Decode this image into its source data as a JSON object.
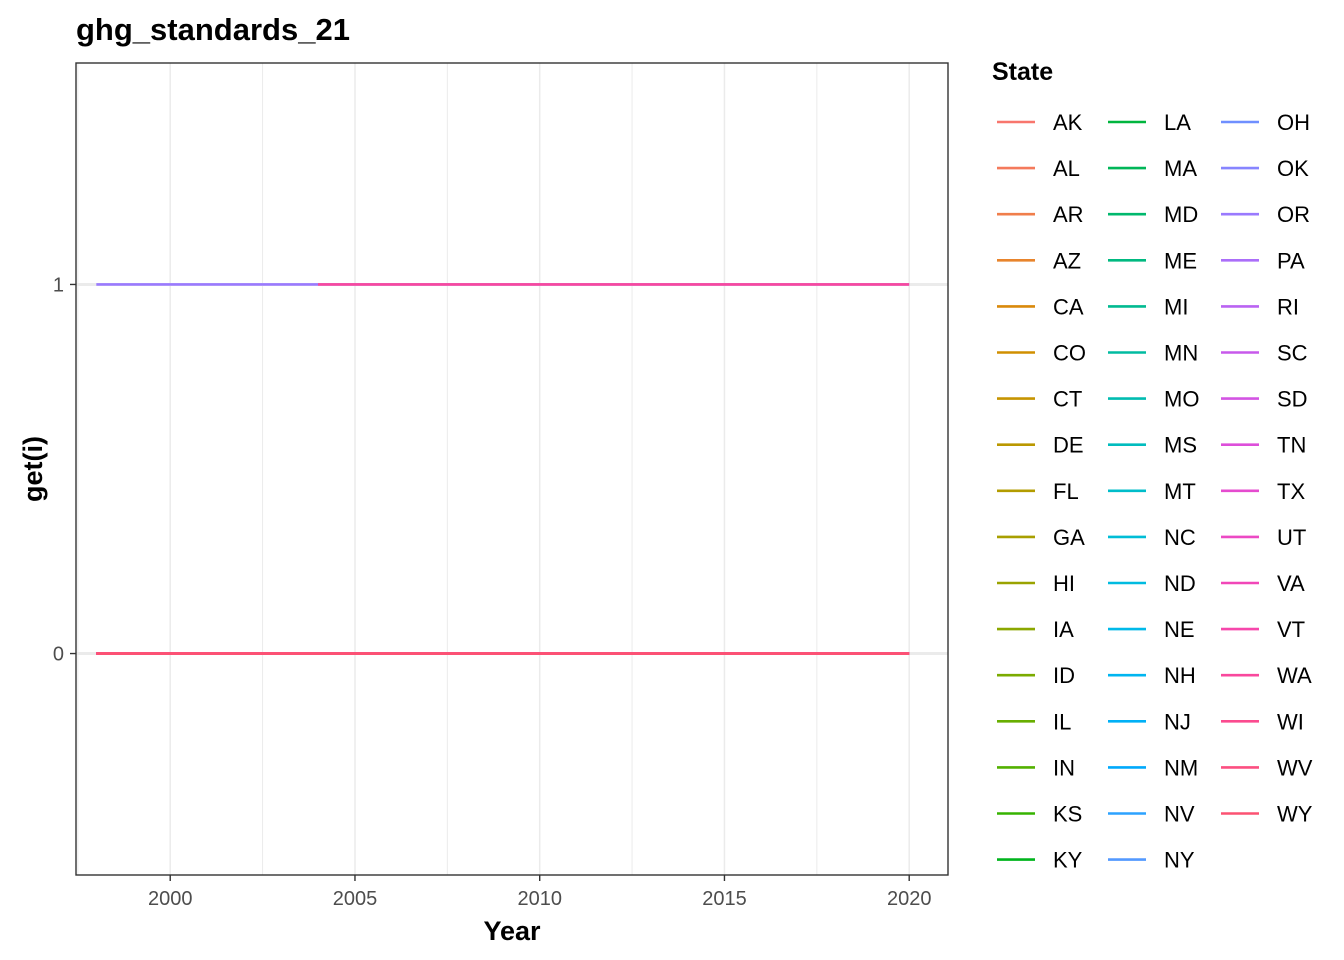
{
  "chart_data": {
    "type": "line",
    "title": "ghg_standards_21",
    "xlabel": "Year",
    "ylabel": "get(i)",
    "xlim": [
      1997.45,
      2021.05
    ],
    "ylim": [
      -0.6,
      1.6
    ],
    "x_ticks": [
      2000,
      2005,
      2010,
      2015,
      2020
    ],
    "x_tick_labels": [
      "2000",
      "2005",
      "2010",
      "2015",
      "2020"
    ],
    "y_ticks": [
      0,
      1
    ],
    "y_tick_labels": [
      "0",
      "1"
    ],
    "grid": true,
    "legend_title": "State",
    "legend_position": "right",
    "series": [
      {
        "name": "AK",
        "color": "#F8766D",
        "segments": [
          {
            "x": [
              1998,
              2020
            ],
            "y": [
              0,
              0
            ]
          }
        ]
      },
      {
        "name": "AL",
        "color": "#F47A5C",
        "segments": [
          {
            "x": [
              1998,
              2020
            ],
            "y": [
              0,
              0
            ]
          }
        ]
      },
      {
        "name": "AR",
        "color": "#F07E4B",
        "segments": [
          {
            "x": [
              1998,
              2020
            ],
            "y": [
              0,
              0
            ]
          }
        ]
      },
      {
        "name": "AZ",
        "color": "#E8842C",
        "segments": [
          {
            "x": [
              1998,
              2020
            ],
            "y": [
              0,
              0
            ]
          }
        ]
      },
      {
        "name": "CA",
        "color": "#D9890B",
        "segments": [
          {
            "x": [
              1998,
              2020
            ],
            "y": [
              0,
              0
            ]
          }
        ]
      },
      {
        "name": "CO",
        "color": "#D08F00",
        "segments": [
          {
            "x": [
              1998,
              2020
            ],
            "y": [
              0,
              0
            ]
          }
        ]
      },
      {
        "name": "CT",
        "color": "#C69400",
        "segments": [
          {
            "x": [
              1998,
              2020
            ],
            "y": [
              0,
              0
            ]
          }
        ]
      },
      {
        "name": "DE",
        "color": "#BA9800",
        "segments": [
          {
            "x": [
              1998,
              2020
            ],
            "y": [
              0,
              0
            ]
          }
        ]
      },
      {
        "name": "FL",
        "color": "#B39C00",
        "segments": [
          {
            "x": [
              1998,
              2020
            ],
            "y": [
              0,
              0
            ]
          }
        ]
      },
      {
        "name": "GA",
        "color": "#A89F00",
        "segments": [
          {
            "x": [
              1998,
              2020
            ],
            "y": [
              0,
              0
            ]
          }
        ]
      },
      {
        "name": "HI",
        "color": "#9AA300",
        "segments": [
          {
            "x": [
              1998,
              2020
            ],
            "y": [
              0,
              0
            ]
          }
        ]
      },
      {
        "name": "IA",
        "color": "#8BA700",
        "segments": [
          {
            "x": [
              1998,
              2020
            ],
            "y": [
              0,
              0
            ]
          }
        ]
      },
      {
        "name": "ID",
        "color": "#7BAB00",
        "segments": [
          {
            "x": [
              1998,
              2020
            ],
            "y": [
              0,
              0
            ]
          }
        ]
      },
      {
        "name": "IL",
        "color": "#68AE00",
        "segments": [
          {
            "x": [
              1998,
              2020
            ],
            "y": [
              0,
              0
            ]
          }
        ]
      },
      {
        "name": "IN",
        "color": "#53B100",
        "segments": [
          {
            "x": [
              1998,
              2020
            ],
            "y": [
              0,
              0
            ]
          }
        ]
      },
      {
        "name": "KS",
        "color": "#36B300",
        "segments": [
          {
            "x": [
              1998,
              2020
            ],
            "y": [
              0,
              0
            ]
          }
        ]
      },
      {
        "name": "KY",
        "color": "#00B41D",
        "segments": [
          {
            "x": [
              1998,
              2020
            ],
            "y": [
              0,
              0
            ]
          }
        ]
      },
      {
        "name": "LA",
        "color": "#00B53E",
        "segments": [
          {
            "x": [
              1998,
              2020
            ],
            "y": [
              0,
              0
            ]
          }
        ]
      },
      {
        "name": "MA",
        "color": "#00B658",
        "segments": [
          {
            "x": [
              1998,
              2020
            ],
            "y": [
              0,
              0
            ]
          }
        ]
      },
      {
        "name": "MD",
        "color": "#00B86D",
        "segments": [
          {
            "x": [
              1998,
              2020
            ],
            "y": [
              0,
              0
            ]
          }
        ]
      },
      {
        "name": "ME",
        "color": "#00B980",
        "segments": [
          {
            "x": [
              1998,
              2020
            ],
            "y": [
              0,
              0
            ]
          }
        ]
      },
      {
        "name": "MI",
        "color": "#00BA91",
        "segments": [
          {
            "x": [
              1998,
              2020
            ],
            "y": [
              0,
              0
            ]
          }
        ]
      },
      {
        "name": "MN",
        "color": "#00BBA1",
        "segments": [
          {
            "x": [
              1998,
              2020
            ],
            "y": [
              0,
              0
            ]
          }
        ]
      },
      {
        "name": "MO",
        "color": "#00BCB0",
        "segments": [
          {
            "x": [
              1998,
              2020
            ],
            "y": [
              0,
              0
            ]
          }
        ]
      },
      {
        "name": "MS",
        "color": "#00BCBE",
        "segments": [
          {
            "x": [
              1998,
              2020
            ],
            "y": [
              0,
              0
            ]
          }
        ]
      },
      {
        "name": "MT",
        "color": "#00BDCA",
        "segments": [
          {
            "x": [
              1998,
              2020
            ],
            "y": [
              0,
              0
            ]
          }
        ]
      },
      {
        "name": "NC",
        "color": "#00BDD6",
        "segments": [
          {
            "x": [
              1998,
              2020
            ],
            "y": [
              0,
              0
            ]
          }
        ]
      },
      {
        "name": "ND",
        "color": "#00BBE0",
        "segments": [
          {
            "x": [
              1998,
              2020
            ],
            "y": [
              0,
              0
            ]
          }
        ]
      },
      {
        "name": "NE",
        "color": "#00B9E9",
        "segments": [
          {
            "x": [
              1998,
              2020
            ],
            "y": [
              0,
              0
            ]
          }
        ]
      },
      {
        "name": "NH",
        "color": "#00B5F0",
        "segments": [
          {
            "x": [
              1998,
              2020
            ],
            "y": [
              0,
              0
            ]
          }
        ]
      },
      {
        "name": "NJ",
        "color": "#00B0F6",
        "segments": [
          {
            "x": [
              1998,
              2020
            ],
            "y": [
              0,
              0
            ]
          }
        ]
      },
      {
        "name": "NM",
        "color": "#00A9FC",
        "segments": [
          {
            "x": [
              1998,
              2020
            ],
            "y": [
              0,
              0
            ]
          }
        ]
      },
      {
        "name": "NV",
        "color": "#2CA2FF",
        "segments": [
          {
            "x": [
              1998,
              2020
            ],
            "y": [
              0,
              0
            ]
          }
        ]
      },
      {
        "name": "NY",
        "color": "#5399FF",
        "segments": [
          {
            "x": [
              1998,
              2020
            ],
            "y": [
              0,
              0
            ]
          }
        ]
      },
      {
        "name": "OH",
        "color": "#6F8FFF",
        "segments": [
          {
            "x": [
              1998,
              2020
            ],
            "y": [
              0,
              0
            ]
          }
        ]
      },
      {
        "name": "OK",
        "color": "#8785FF",
        "segments": [
          {
            "x": [
              1998,
              2020
            ],
            "y": [
              0,
              0
            ]
          }
        ]
      },
      {
        "name": "OR",
        "color": "#9A7AFE",
        "segments": [
          {
            "x": [
              1998,
              2020
            ],
            "y": [
              1,
              1
            ]
          }
        ]
      },
      {
        "name": "PA",
        "color": "#AB6EF9",
        "segments": [
          {
            "x": [
              1998,
              2020
            ],
            "y": [
              0,
              0
            ]
          }
        ]
      },
      {
        "name": "RI",
        "color": "#BA63F2",
        "segments": [
          {
            "x": [
              1998,
              2020
            ],
            "y": [
              0,
              0
            ]
          }
        ]
      },
      {
        "name": "SC",
        "color": "#C759EB",
        "segments": [
          {
            "x": [
              1998,
              2020
            ],
            "y": [
              0,
              0
            ]
          }
        ]
      },
      {
        "name": "SD",
        "color": "#D354E3",
        "segments": [
          {
            "x": [
              1998,
              2020
            ],
            "y": [
              0,
              0
            ]
          }
        ]
      },
      {
        "name": "TN",
        "color": "#DD4FDA",
        "segments": [
          {
            "x": [
              1998,
              2020
            ],
            "y": [
              0,
              0
            ]
          }
        ]
      },
      {
        "name": "TX",
        "color": "#E54BCF",
        "segments": [
          {
            "x": [
              1998,
              2020
            ],
            "y": [
              0,
              0
            ]
          }
        ]
      },
      {
        "name": "UT",
        "color": "#EC49C4",
        "segments": [
          {
            "x": [
              1998,
              2020
            ],
            "y": [
              0,
              0
            ]
          }
        ]
      },
      {
        "name": "VA",
        "color": "#F147B8",
        "segments": [
          {
            "x": [
              1998,
              2020
            ],
            "y": [
              0,
              0
            ]
          }
        ]
      },
      {
        "name": "VT",
        "color": "#F647AB",
        "segments": [
          {
            "x": [
              1998,
              2020
            ],
            "y": [
              0,
              0
            ]
          }
        ]
      },
      {
        "name": "WA",
        "color": "#F9489D",
        "segments": [
          {
            "x": [
              1998,
              2003.9
            ],
            "y": [
              0,
              0
            ]
          },
          {
            "x": [
              2004,
              2020
            ],
            "y": [
              1,
              1
            ]
          }
        ]
      },
      {
        "name": "WI",
        "color": "#FB4B8F",
        "segments": [
          {
            "x": [
              1998,
              2020
            ],
            "y": [
              0,
              0
            ]
          }
        ]
      },
      {
        "name": "WV",
        "color": "#FC4F81",
        "segments": [
          {
            "x": [
              1998,
              2020
            ],
            "y": [
              0,
              0
            ]
          }
        ]
      },
      {
        "name": "WY",
        "color": "#FC5272",
        "segments": [
          {
            "x": [
              1998,
              2020
            ],
            "y": [
              0,
              0
            ]
          }
        ]
      }
    ]
  }
}
